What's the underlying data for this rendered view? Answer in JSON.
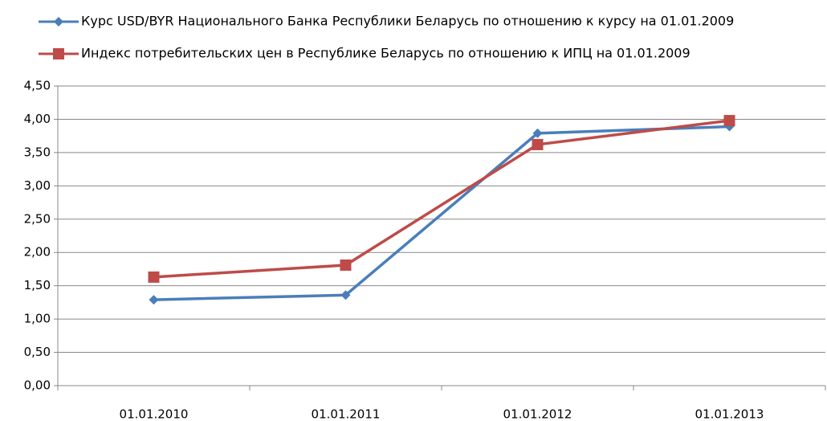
{
  "chart_data": {
    "type": "line",
    "categories": [
      "01.01.2010",
      "01.01.2011",
      "01.01.2012",
      "01.01.2013"
    ],
    "series": [
      {
        "name": "Курс USD/BYR Национального Банка Республики Беларусь по отношению к курсу на 01.01.2009",
        "color": "#4a7ebb",
        "marker": "diamond",
        "values": [
          1.29,
          1.36,
          3.79,
          3.89
        ]
      },
      {
        "name": "Индекс потребительских цен в Республике Беларусь по отношению к ИПЦ на 01.01.2009",
        "color": "#be4b48",
        "marker": "square",
        "values": [
          1.63,
          1.81,
          3.62,
          3.98
        ]
      }
    ],
    "ylim": [
      0,
      4.5
    ],
    "yticks": [
      {
        "value": 0,
        "label": "0,00"
      },
      {
        "value": 0.5,
        "label": "0,50"
      },
      {
        "value": 1,
        "label": "1,00"
      },
      {
        "value": 1.5,
        "label": "1,50"
      },
      {
        "value": 2,
        "label": "2,00"
      },
      {
        "value": 2.5,
        "label": "2,50"
      },
      {
        "value": 3,
        "label": "3,00"
      },
      {
        "value": 3.5,
        "label": "3,50"
      },
      {
        "value": 4,
        "label": "4,00"
      },
      {
        "value": 4.5,
        "label": "4,50"
      }
    ],
    "grid": true,
    "legend": "top"
  }
}
